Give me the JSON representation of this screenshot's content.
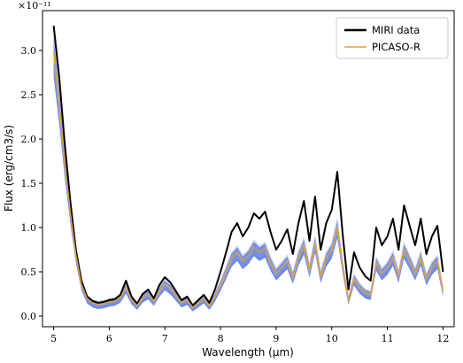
{
  "chart_data": {
    "type": "line",
    "xlabel": "Wavelength (µm)",
    "ylabel": "Flux (erg/cm3/s)",
    "offset_label": "×10⁻¹¹",
    "y_scale_exponent": -11,
    "xlim": [
      4.8,
      12.2
    ],
    "ylim": [
      -0.12,
      3.45
    ],
    "x_ticks": [
      "5",
      "6",
      "7",
      "8",
      "9",
      "10",
      "11",
      "12"
    ],
    "y_ticks": [
      "0.0",
      "0.5",
      "1.0",
      "1.5",
      "2.0",
      "2.5",
      "3.0"
    ],
    "legend_position": "top-right",
    "colors": {
      "miri": "#000000",
      "picaso": "#f0a020",
      "band": "#3a60dc",
      "faint": "#9aaee8"
    },
    "series": [
      {
        "name": "MIRI data",
        "x": [
          5.0,
          5.1,
          5.2,
          5.3,
          5.4,
          5.5,
          5.6,
          5.7,
          5.8,
          5.9,
          6.0,
          6.1,
          6.2,
          6.3,
          6.4,
          6.5,
          6.6,
          6.7,
          6.8,
          6.9,
          7.0,
          7.1,
          7.2,
          7.3,
          7.4,
          7.5,
          7.6,
          7.7,
          7.8,
          7.9,
          8.0,
          8.1,
          8.2,
          8.3,
          8.4,
          8.5,
          8.6,
          8.7,
          8.8,
          8.9,
          9.0,
          9.1,
          9.2,
          9.3,
          9.4,
          9.5,
          9.6,
          9.7,
          9.8,
          9.9,
          10.0,
          10.1,
          10.2,
          10.3,
          10.4,
          10.5,
          10.6,
          10.7,
          10.8,
          10.9,
          11.0,
          11.1,
          11.2,
          11.3,
          11.4,
          11.5,
          11.6,
          11.7,
          11.8,
          11.9,
          12.0
        ],
        "y": [
          3.28,
          2.7,
          1.95,
          1.3,
          0.75,
          0.4,
          0.22,
          0.17,
          0.15,
          0.16,
          0.18,
          0.19,
          0.24,
          0.4,
          0.22,
          0.14,
          0.25,
          0.3,
          0.2,
          0.35,
          0.44,
          0.38,
          0.28,
          0.18,
          0.22,
          0.12,
          0.18,
          0.24,
          0.15,
          0.3,
          0.5,
          0.72,
          0.95,
          1.05,
          0.9,
          1.0,
          1.16,
          1.1,
          1.18,
          0.95,
          0.75,
          0.85,
          0.98,
          0.7,
          1.05,
          1.3,
          0.85,
          1.35,
          0.75,
          1.05,
          1.2,
          1.63,
          0.9,
          0.3,
          0.72,
          0.55,
          0.45,
          0.4,
          1.0,
          0.8,
          0.9,
          1.1,
          0.75,
          1.25,
          1.02,
          0.8,
          1.1,
          0.7,
          0.9,
          1.02,
          0.5
        ]
      },
      {
        "name": "PICASO-R",
        "x": [
          5.0,
          5.1,
          5.2,
          5.3,
          5.4,
          5.5,
          5.6,
          5.7,
          5.8,
          5.9,
          6.0,
          6.1,
          6.2,
          6.3,
          6.4,
          6.5,
          6.6,
          6.7,
          6.8,
          6.9,
          7.0,
          7.1,
          7.2,
          7.3,
          7.4,
          7.5,
          7.6,
          7.7,
          7.8,
          7.9,
          8.0,
          8.1,
          8.2,
          8.3,
          8.4,
          8.5,
          8.6,
          8.7,
          8.8,
          8.9,
          9.0,
          9.1,
          9.2,
          9.3,
          9.4,
          9.5,
          9.6,
          9.7,
          9.8,
          9.9,
          10.0,
          10.1,
          10.2,
          10.3,
          10.4,
          10.5,
          10.6,
          10.7,
          10.8,
          10.9,
          11.0,
          11.1,
          11.2,
          11.3,
          11.4,
          11.5,
          11.6,
          11.7,
          11.8,
          11.9,
          12.0
        ],
        "y": [
          2.98,
          2.4,
          1.75,
          1.18,
          0.7,
          0.36,
          0.2,
          0.15,
          0.13,
          0.14,
          0.16,
          0.17,
          0.21,
          0.32,
          0.19,
          0.12,
          0.21,
          0.25,
          0.17,
          0.28,
          0.36,
          0.31,
          0.23,
          0.15,
          0.18,
          0.1,
          0.15,
          0.2,
          0.12,
          0.22,
          0.35,
          0.5,
          0.65,
          0.72,
          0.62,
          0.68,
          0.78,
          0.72,
          0.76,
          0.6,
          0.48,
          0.55,
          0.62,
          0.44,
          0.66,
          0.8,
          0.52,
          0.82,
          0.45,
          0.65,
          0.75,
          1.0,
          0.55,
          0.18,
          0.42,
          0.32,
          0.26,
          0.24,
          0.6,
          0.48,
          0.55,
          0.66,
          0.45,
          0.75,
          0.62,
          0.48,
          0.66,
          0.42,
          0.55,
          0.62,
          0.28
        ]
      }
    ]
  }
}
